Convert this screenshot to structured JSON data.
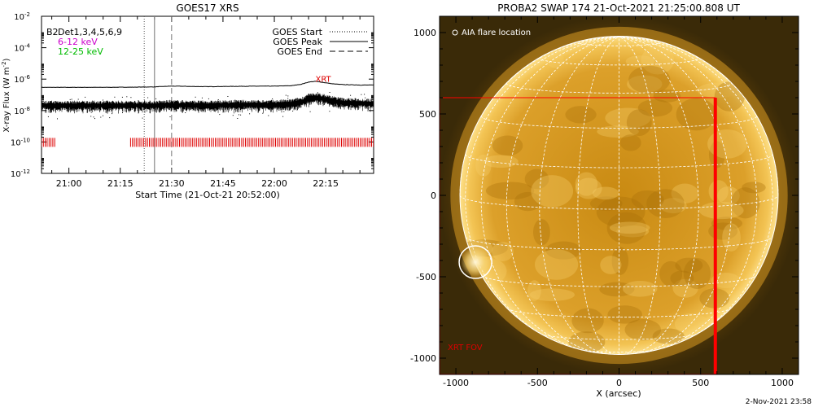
{
  "colors": {
    "axis": "#000000",
    "xrt": "#dd0000",
    "chan_6_12": "#cc00cc",
    "chan_12_25": "#00bb00",
    "sun_disk": "#e8a21a",
    "sun_corona": "#b57a0c",
    "sky": "#3a2a08",
    "grid": "#ffffff"
  },
  "chart_data": [
    {
      "type": "line",
      "title": "GOES17 XRS",
      "xlabel": "Start Time (21-Oct-21 20:52:00)",
      "ylabel": "X-ray Flux (W m",
      "ylabel_sup": "-2",
      "ylabel_close": ")",
      "x_unit": "time",
      "xlim": [
        "20:52",
        "22:29"
      ],
      "ylim": [
        1e-12,
        0.01
      ],
      "log_y": true,
      "x_ticks": [
        "21:00",
        "21:15",
        "21:30",
        "21:45",
        "22:00",
        "22:15"
      ],
      "y_ticks": [
        {
          "base": "10",
          "exp": "-12",
          "value": 1e-12
        },
        {
          "base": "10",
          "exp": "-10",
          "value": 1e-10
        },
        {
          "base": "10",
          "exp": "-8",
          "value": 1e-08
        },
        {
          "base": "10",
          "exp": "-6",
          "value": 1e-06
        },
        {
          "base": "10",
          "exp": "-4",
          "value": 0.0001
        },
        {
          "base": "10",
          "exp": "-2",
          "value": 0.01
        }
      ],
      "channel_legend": [
        {
          "label": "Det1,3,4,5,6,9",
          "overlap": "B2",
          "color": "#000000"
        },
        {
          "label": "6-12 keV",
          "color": "#cc00cc"
        },
        {
          "label": "12-25 keV",
          "color": "#00bb00"
        }
      ],
      "legend": [
        {
          "label": "GOES Start",
          "style": "dotted"
        },
        {
          "label": "GOES Peak",
          "style": "solid"
        },
        {
          "label": "GOES End",
          "style": "dashed"
        }
      ],
      "legend_position": "top-right",
      "event_lines": {
        "start": "21:22",
        "peak": "21:25",
        "end": "21:30"
      },
      "series": [
        {
          "key": "long",
          "style": "line",
          "x": [
            "20:52",
            "21:00",
            "21:10",
            "21:20",
            "21:25",
            "21:30",
            "21:40",
            "21:50",
            "22:00",
            "22:05",
            "22:08",
            "22:10",
            "22:12",
            "22:14",
            "22:17",
            "22:20",
            "22:25",
            "22:29"
          ],
          "y": [
            3e-07,
            3e-07,
            3e-07,
            3.1e-07,
            3.2e-07,
            3.6e-07,
            3.3e-07,
            3.5e-07,
            3.6e-07,
            3.8e-07,
            4.8e-07,
            6.5e-07,
            7.2e-07,
            6.3e-07,
            5e-07,
            4.5e-07,
            4.2e-07,
            4.2e-07
          ]
        },
        {
          "key": "short",
          "style": "noisy-points",
          "x": [
            "20:52",
            "21:00",
            "21:10",
            "21:20",
            "21:25",
            "21:30",
            "21:40",
            "21:50",
            "22:00",
            "22:05",
            "22:08",
            "22:10",
            "22:12",
            "22:14",
            "22:17",
            "22:20",
            "22:25",
            "22:29"
          ],
          "y": [
            2e-08,
            2e-08,
            2e-08,
            2e-08,
            2e-08,
            2.2e-08,
            2e-08,
            2.2e-08,
            2.2e-08,
            2.5e-08,
            3.5e-08,
            5.5e-08,
            6.5e-08,
            5.5e-08,
            4e-08,
            3e-08,
            2.8e-08,
            2.6e-08
          ]
        }
      ],
      "xrt": {
        "label": "XRT",
        "label_x": "22:12",
        "label_y": 6e-07,
        "level": 1e-10,
        "segments": [
          [
            "20:52",
            "20:56"
          ],
          [
            "21:18",
            "22:29"
          ]
        ]
      }
    },
    {
      "type": "image",
      "title": "PROBA2 SWAP 174 21-Oct-2021 21:25:00.808 UT",
      "xlabel": "X (arcsec)",
      "ylabel": "",
      "xlim": [
        -1100,
        1100
      ],
      "ylim": [
        -1100,
        1100
      ],
      "x_ticks": [
        -1000,
        -500,
        0,
        500,
        1000
      ],
      "y_ticks": [
        -1000,
        -500,
        0,
        500,
        1000
      ],
      "solar_radius_arcsec": 975,
      "legend_text": "AIA flare location",
      "flare": {
        "x": -880,
        "y": -410,
        "radius": 100
      },
      "xrt_fov": {
        "label": "XRT FOV",
        "x0": -1100,
        "x1": 590,
        "y0": -1100,
        "y1": 600
      },
      "grid_step_deg": 15
    }
  ],
  "footer": {
    "date": "2-Nov-2021 23:58"
  }
}
